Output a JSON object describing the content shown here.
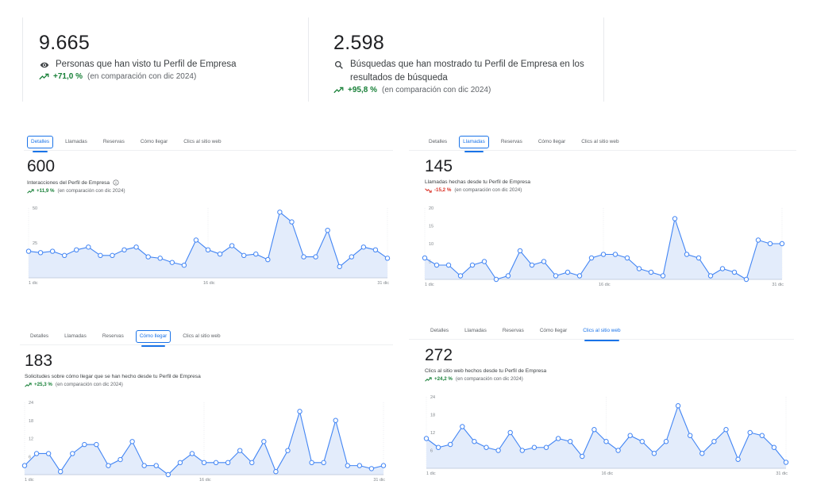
{
  "summary_cards": [
    {
      "value": "9.665",
      "icon": "eye-icon",
      "label": "Personas que han visto tu Perfil de Empresa",
      "change": "+71,0 %",
      "change_dir": "up",
      "comparison": "(en comparación con dic 2024)"
    },
    {
      "value": "2.598",
      "icon": "search-icon",
      "label": "Búsquedas que han mostrado tu Perfil de Empresa en los resultados de búsqueda",
      "change": "+95,8 %",
      "change_dir": "up",
      "comparison": "(en comparación con dic 2024)"
    }
  ],
  "tabs": [
    "Detalles",
    "Llamadas",
    "Reservas",
    "Cómo llegar",
    "Clics al sitio web"
  ],
  "colors": {
    "accent": "#1a73e8",
    "line": "#4285f4",
    "fill": "#e3ecfb",
    "up": "#188038",
    "down": "#d93025"
  },
  "panels": [
    {
      "active_tab": 0,
      "value": "600",
      "label": "Interacciones del Perfil de Empresa",
      "has_info": true,
      "change": "+11,9 %",
      "change_dir": "up",
      "comparison": "(en comparación con dic 2024)"
    },
    {
      "active_tab": 1,
      "value": "145",
      "label": "Llamadas hechas desde tu Perfil de Empresa",
      "has_info": false,
      "change": "-15,2 %",
      "change_dir": "down",
      "comparison": "(en comparación con dic 2024)"
    },
    {
      "active_tab": 3,
      "value": "183",
      "label": "Solicitudes sobre cómo llegar que se han hecho desde tu Perfil de Empresa",
      "has_info": false,
      "change": "+25,3 %",
      "change_dir": "up",
      "comparison": "(en comparación con dic 2024)"
    },
    {
      "active_tab": 4,
      "value": "272",
      "label": "Clics al sitio web hechos desde tu Perfil de Empresa",
      "has_info": false,
      "change": "+24,2 %",
      "change_dir": "up",
      "comparison": "(en comparación con dic 2024)"
    }
  ],
  "chart_data": [
    {
      "type": "area",
      "title": "Interacciones del Perfil de Empresa",
      "xlabel": "",
      "ylabel": "",
      "x_ticks": [
        "1 dic",
        "16 dic",
        "31 dic"
      ],
      "y_ticks": [
        25,
        50
      ],
      "ylim": [
        0,
        50
      ],
      "grid": true,
      "x": [
        1,
        2,
        3,
        4,
        5,
        6,
        7,
        8,
        9,
        10,
        11,
        12,
        13,
        14,
        15,
        16,
        17,
        18,
        19,
        20,
        21,
        22,
        23,
        24,
        25,
        26,
        27,
        28,
        29,
        30,
        31
      ],
      "values": [
        19,
        18,
        19,
        16,
        20,
        22,
        16,
        16,
        20,
        22,
        15,
        14,
        11,
        9,
        27,
        20,
        17,
        23,
        16,
        17,
        13,
        47,
        40,
        15,
        15,
        34,
        8,
        15,
        22,
        20,
        14
      ]
    },
    {
      "type": "area",
      "title": "Llamadas hechas desde tu Perfil de Empresa",
      "xlabel": "",
      "ylabel": "",
      "x_ticks": [
        "1 dic",
        "16 dic",
        "31 dic"
      ],
      "y_ticks": [
        5,
        10,
        15,
        20
      ],
      "ylim": [
        0,
        20
      ],
      "grid": true,
      "x": [
        1,
        2,
        3,
        4,
        5,
        6,
        7,
        8,
        9,
        10,
        11,
        12,
        13,
        14,
        15,
        16,
        17,
        18,
        19,
        20,
        21,
        22,
        23,
        24,
        25,
        26,
        27,
        28,
        29,
        30,
        31
      ],
      "values": [
        6,
        4,
        4,
        1,
        4,
        5,
        0,
        1,
        8,
        4,
        5,
        1,
        2,
        1,
        6,
        7,
        7,
        6,
        3,
        2,
        1,
        17,
        7,
        6,
        1,
        3,
        2,
        0,
        11,
        10,
        10
      ]
    },
    {
      "type": "area",
      "title": "Solicitudes sobre cómo llegar que se han hecho desde tu Perfil de Empresa",
      "xlabel": "",
      "ylabel": "",
      "x_ticks": [
        "1 dic",
        "16 dic",
        "31 dic"
      ],
      "y_ticks": [
        6,
        12,
        18,
        24
      ],
      "ylim": [
        0,
        24
      ],
      "grid": true,
      "x": [
        1,
        2,
        3,
        4,
        5,
        6,
        7,
        8,
        9,
        10,
        11,
        12,
        13,
        14,
        15,
        16,
        17,
        18,
        19,
        20,
        21,
        22,
        23,
        24,
        25,
        26,
        27,
        28,
        29,
        30,
        31
      ],
      "values": [
        3,
        7,
        7,
        1,
        7,
        10,
        10,
        3,
        5,
        11,
        3,
        3,
        0,
        4,
        7,
        4,
        4,
        4,
        8,
        4,
        11,
        1,
        8,
        21,
        4,
        4,
        18,
        3,
        3,
        2,
        3
      ]
    },
    {
      "type": "area",
      "title": "Clics al sitio web hechos desde tu Perfil de Empresa",
      "xlabel": "",
      "ylabel": "",
      "x_ticks": [
        "1 dic",
        "16 dic",
        "31 dic"
      ],
      "y_ticks": [
        6,
        12,
        18,
        24
      ],
      "ylim": [
        0,
        24
      ],
      "grid": true,
      "x": [
        1,
        2,
        3,
        4,
        5,
        6,
        7,
        8,
        9,
        10,
        11,
        12,
        13,
        14,
        15,
        16,
        17,
        18,
        19,
        20,
        21,
        22,
        23,
        24,
        25,
        26,
        27,
        28,
        29,
        30,
        31
      ],
      "values": [
        10,
        7,
        8,
        14,
        9,
        7,
        6,
        12,
        6,
        7,
        7,
        10,
        9,
        4,
        13,
        9,
        6,
        11,
        9,
        5,
        9,
        21,
        11,
        5,
        9,
        13,
        3,
        12,
        11,
        7,
        2
      ]
    }
  ]
}
